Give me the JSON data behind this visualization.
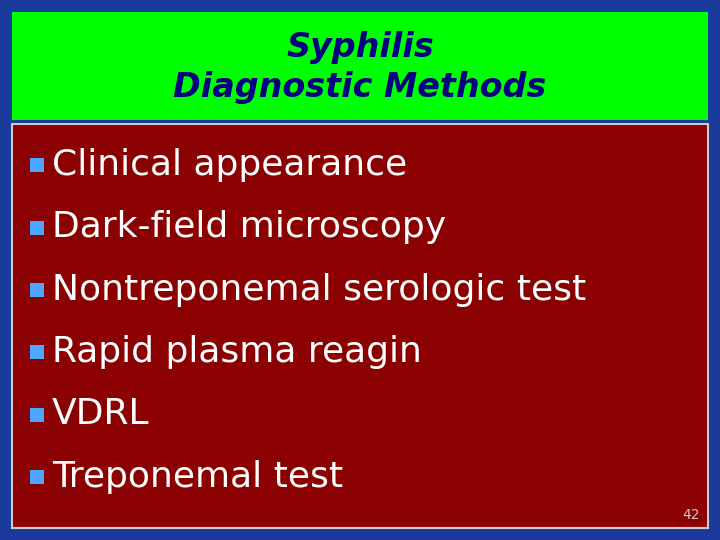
{
  "title_line1": "Syphilis",
  "title_line2": "Diagnostic Methods",
  "title_bg_color": "#00FF00",
  "title_text_color": "#000080",
  "slide_bg_color": "#1a3a9c",
  "content_bg_color": "#8B0000",
  "content_text_color": "#FFFFFF",
  "bullet_color": "#4da6ff",
  "bullets": [
    "Clinical appearance",
    "Dark-field microscopy",
    "Nontreponemal serologic test",
    "Rapid plasma reagin",
    "VDRL",
    "Treponemal test"
  ],
  "slide_number": "42",
  "slide_number_color": "#cccccc",
  "border_color": "#cccccc",
  "title_fontsize": 24,
  "bullet_fontsize": 26,
  "slide_num_fontsize": 10,
  "fig_width": 7.2,
  "fig_height": 5.4,
  "dpi": 100
}
